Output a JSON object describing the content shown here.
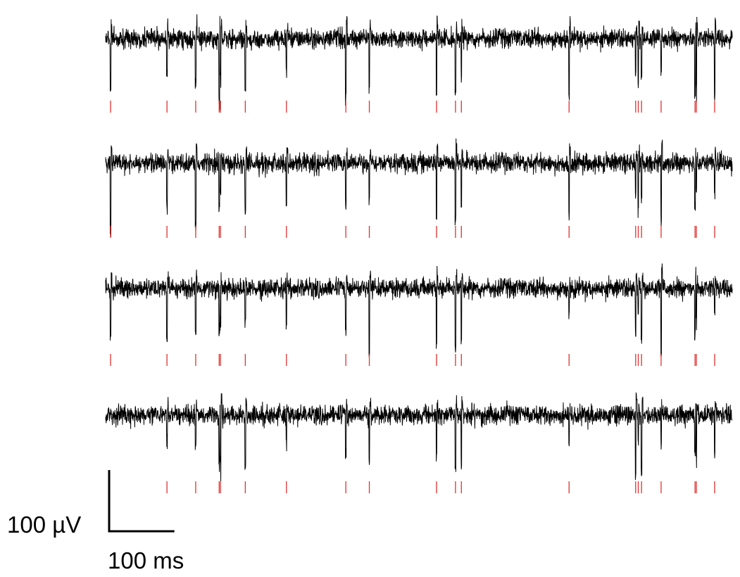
{
  "chart_data": {
    "type": "spike-raster",
    "xlim": [
      0,
      960
    ],
    "series": [
      {
        "color": "#e03030",
        "values": [
          7.6,
          94,
          138,
          174,
          176,
          214,
          277,
          368,
          404,
          507,
          536,
          545,
          710,
          812,
          816,
          821,
          851,
          903,
          905,
          933
        ]
      },
      {
        "color": "#e03030",
        "values": [
          7.6,
          94,
          138,
          174,
          176,
          214,
          277,
          368,
          404,
          507,
          536,
          545,
          710,
          812,
          816,
          821,
          851,
          903,
          905,
          933
        ]
      },
      {
        "color": "#e03030",
        "values": [
          7.6,
          94,
          138,
          174,
          176,
          214,
          277,
          368,
          404,
          507,
          536,
          545,
          710,
          812,
          816,
          821,
          851,
          903,
          905,
          933
        ]
      },
      {
        "color": "#e03030",
        "values": [
          94,
          138,
          174,
          176,
          214,
          277,
          368,
          404,
          507,
          536,
          545,
          710,
          812,
          816,
          821,
          851,
          903,
          905,
          933
        ]
      }
    ],
    "scale_bar": {
      "y_label": "100 µV",
      "y_value": 100,
      "x_label": "100 ms",
      "x_value": 100
    }
  }
}
